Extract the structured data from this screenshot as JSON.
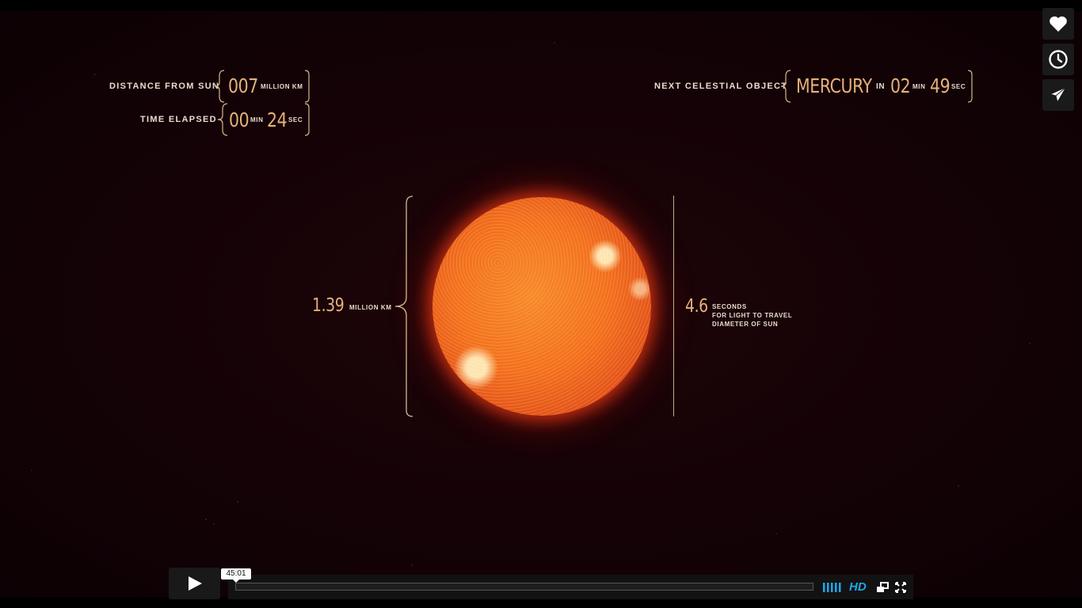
{
  "overlay": {
    "distance_label": "DISTANCE FROM SUN",
    "distance_value": "007",
    "distance_unit": "MILLION KM",
    "time_label": "TIME ELAPSED",
    "time_min": "00",
    "time_min_unit": "MIN",
    "time_sec": "24",
    "time_sec_unit": "SEC",
    "next_label": "NEXT CELESTIAL OBJECT",
    "next_object": "MERCURY",
    "next_in": "IN",
    "next_min": "02",
    "next_min_unit": "MIN",
    "next_sec": "49",
    "next_sec_unit": "SEC",
    "diameter_value": "1.39",
    "diameter_unit": "MILLION KM",
    "light_value": "4.6",
    "light_line1": "SECONDS",
    "light_line2": "FOR LIGHT TO TRAVEL",
    "light_line3": "DIAMETER OF SUN"
  },
  "sidebar": {
    "like_icon": "heart-icon",
    "later_icon": "clock-icon",
    "share_icon": "paper-plane-icon"
  },
  "player": {
    "time_tooltip": "45:01",
    "hd_label": "HD",
    "play_icon": "play-icon",
    "volume_icon": "volume-bars-icon",
    "popout_icon": "popout-icon",
    "fullscreen_icon": "fullscreen-icon",
    "accent_color": "#1ea7e8"
  }
}
